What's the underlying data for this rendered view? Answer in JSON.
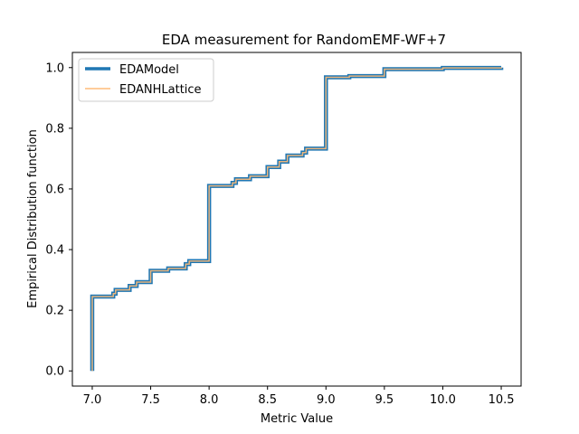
{
  "chart_data": {
    "type": "line",
    "title": "EDA measurement for RandomEMF-WF+7",
    "xlabel": "Metric Value",
    "ylabel": "Empirical Distribution function",
    "xlim": [
      6.83,
      10.67
    ],
    "ylim": [
      -0.05,
      1.05
    ],
    "xticks": [
      "7.0",
      "7.5",
      "8.0",
      "8.5",
      "9.0",
      "9.5",
      "10.0",
      "10.5"
    ],
    "yticks": [
      "0.0",
      "0.2",
      "0.4",
      "0.6",
      "0.8",
      "1.0"
    ],
    "grid": false,
    "legend_position": "upper-left",
    "drawstyle": "steps-post",
    "series": [
      {
        "name": "EDAModel",
        "color": "#1f77b4",
        "x": [
          7.0,
          7.0,
          7.18,
          7.2,
          7.32,
          7.38,
          7.5,
          7.65,
          7.8,
          7.83,
          8.0,
          8.2,
          8.23,
          8.35,
          8.5,
          8.6,
          8.67,
          8.8,
          8.83,
          9.0,
          9.2,
          9.5,
          10.0,
          10.5
        ],
        "y": [
          0.0,
          0.245,
          0.255,
          0.267,
          0.28,
          0.293,
          0.33,
          0.338,
          0.352,
          0.362,
          0.61,
          0.62,
          0.632,
          0.642,
          0.672,
          0.69,
          0.71,
          0.72,
          0.733,
          0.968,
          0.972,
          0.995,
          0.999,
          1.0
        ]
      },
      {
        "name": "EDANHLattice",
        "color": "#ffbb78",
        "x": [
          7.0,
          7.0,
          7.18,
          7.2,
          7.32,
          7.38,
          7.5,
          7.65,
          7.8,
          7.83,
          8.0,
          8.2,
          8.23,
          8.35,
          8.5,
          8.6,
          8.67,
          8.8,
          8.83,
          9.0,
          9.2,
          9.5,
          10.0,
          10.5
        ],
        "y": [
          0.0,
          0.245,
          0.255,
          0.267,
          0.28,
          0.293,
          0.33,
          0.338,
          0.352,
          0.362,
          0.61,
          0.62,
          0.632,
          0.642,
          0.672,
          0.69,
          0.71,
          0.72,
          0.733,
          0.968,
          0.972,
          0.995,
          0.999,
          1.0
        ]
      }
    ]
  }
}
